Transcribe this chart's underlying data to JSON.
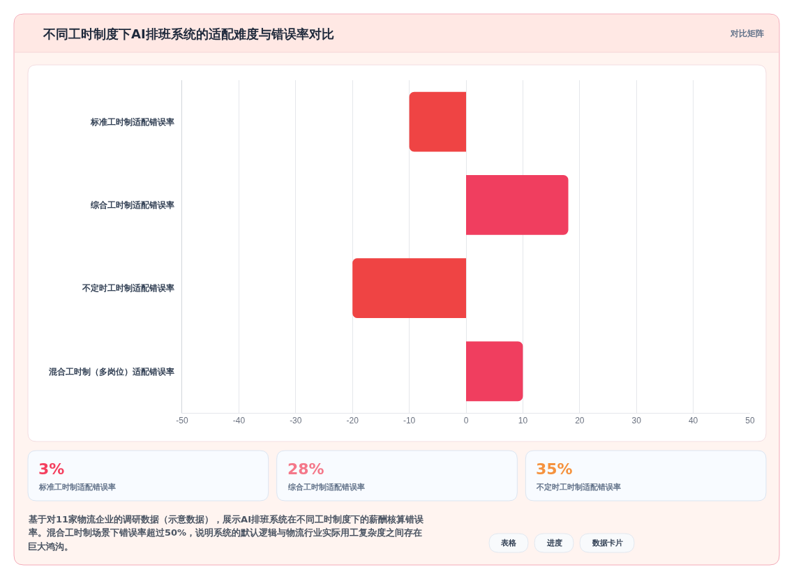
{
  "chart_data": [
    {
      "type": "bar",
      "orientation": "horizontal",
      "title": "不同工时制度下AI排班系统的适配难度与错误率对比",
      "categories": [
        "标准工时制适配错误率",
        "综合工时制适配错误率",
        "不定时工时制适配错误率",
        "混合工时制（多岗位）适配错误率"
      ],
      "values": [
        -10,
        18,
        -20,
        10
      ],
      "colors": [
        "#ef4444",
        "#f03e5f",
        "#ef4444",
        "#f03e5f"
      ],
      "xlim": [
        -50,
        50
      ],
      "xticks": [
        -50,
        -40,
        -30,
        -20,
        -10,
        0,
        10,
        20,
        30,
        40,
        50
      ],
      "grid": "x",
      "annotations": [
        "对比矩阵",
        "基于对11家物流企业的调研数据（示意数据），展示AI排班系统在不同工时制度下的薪酬核算错误率。混合工时制场景下错误率超过50%，说明系统的默认逻辑与物流行业实际用工复杂度之间存在巨大鸿沟。",
        "表格",
        "进度",
        "数据卡片"
      ]
    },
    {
      "type": "other",
      "categories": [
        "标准工时制适配错误率",
        "综合工时制适配错误率",
        "不定时工时制适配错误率"
      ],
      "values": [
        3,
        28,
        35
      ],
      "value_labels": [
        "3%",
        "28%",
        "35%"
      ]
    }
  ]
}
